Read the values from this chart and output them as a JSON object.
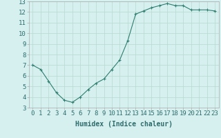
{
  "x": [
    0,
    1,
    2,
    3,
    4,
    5,
    6,
    7,
    8,
    9,
    10,
    11,
    12,
    13,
    14,
    15,
    16,
    17,
    18,
    19,
    20,
    21,
    22,
    23
  ],
  "y": [
    7.0,
    6.6,
    5.5,
    4.4,
    3.7,
    3.5,
    4.0,
    4.7,
    5.3,
    5.7,
    6.6,
    7.5,
    9.3,
    11.8,
    12.1,
    12.4,
    12.6,
    12.8,
    12.6,
    12.6,
    12.2,
    12.2,
    12.2,
    12.1
  ],
  "line_color": "#2e7d6e",
  "marker": "+",
  "marker_size": 3,
  "bg_color": "#d6f0f0",
  "grid_color": "#b8d8d0",
  "xlabel": "Humidex (Indice chaleur)",
  "xlim": [
    -0.5,
    23.5
  ],
  "ylim": [
    3,
    13
  ],
  "yticks": [
    3,
    4,
    5,
    6,
    7,
    8,
    9,
    10,
    11,
    12,
    13
  ],
  "xticks": [
    0,
    1,
    2,
    3,
    4,
    5,
    6,
    7,
    8,
    9,
    10,
    11,
    12,
    13,
    14,
    15,
    16,
    17,
    18,
    19,
    20,
    21,
    22,
    23
  ],
  "label_fontsize": 7,
  "tick_fontsize": 6.5
}
